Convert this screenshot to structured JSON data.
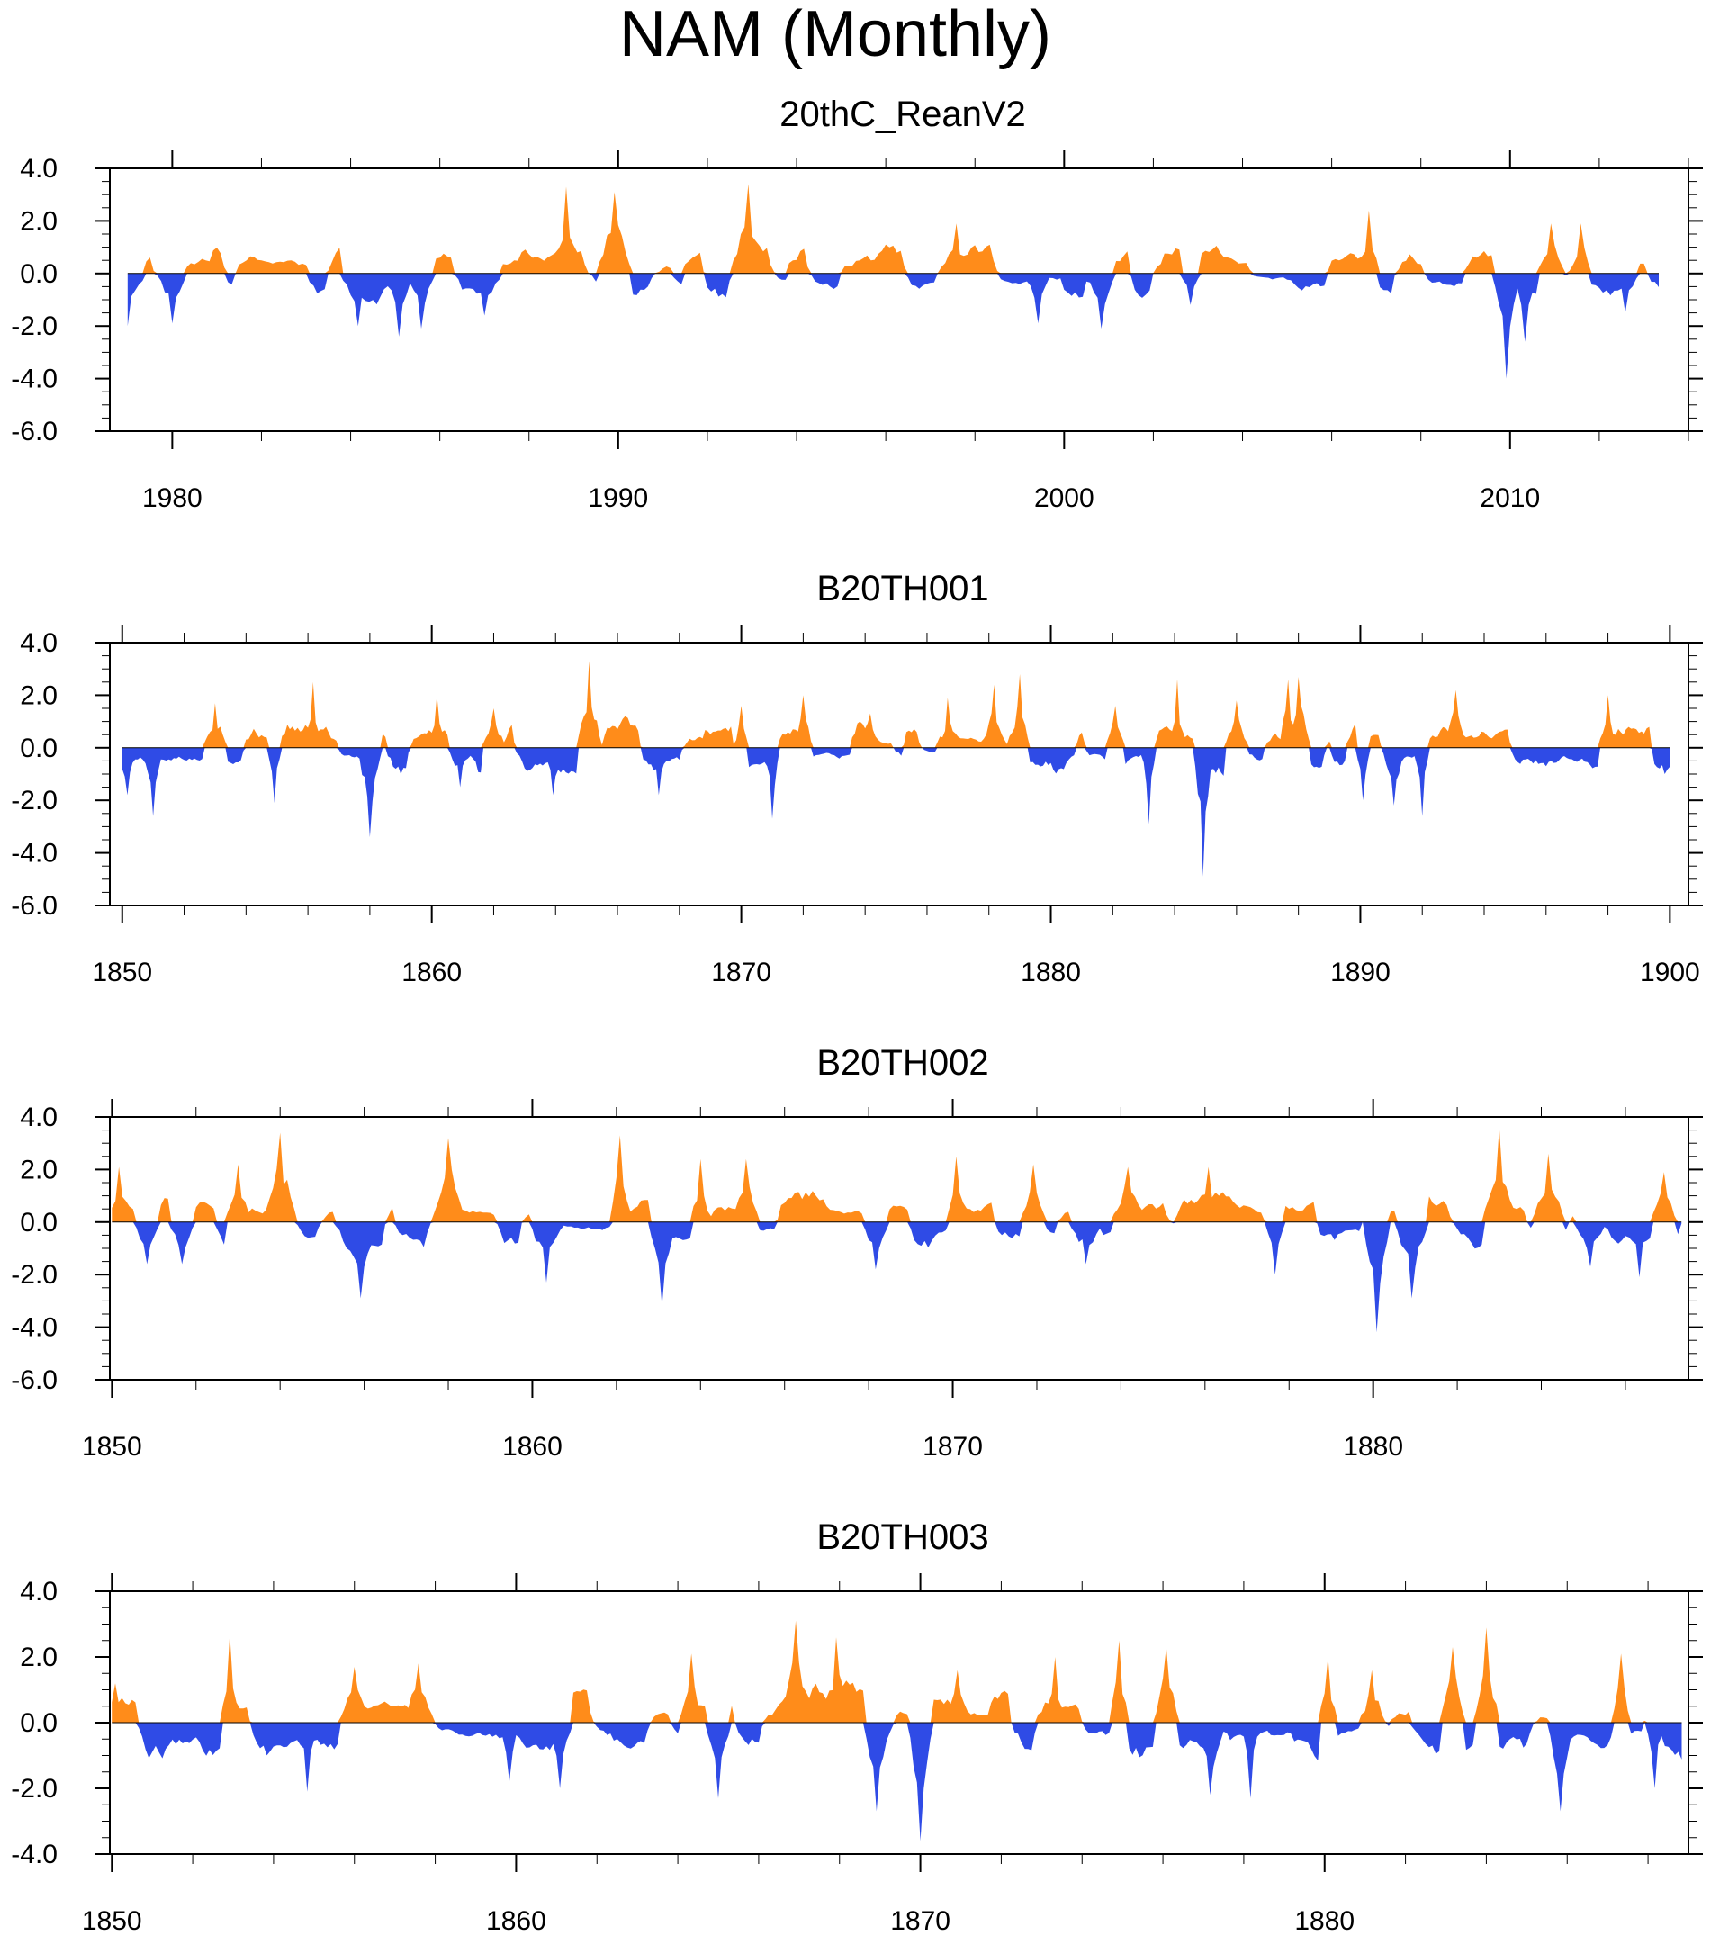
{
  "figure_title": "NAM (Monthly)",
  "colors": {
    "positive": "#ff8c1a",
    "negative": "#2f4be6",
    "axis": "#000000"
  },
  "chart_data": [
    {
      "type": "area",
      "title": "20thC_ReanV2",
      "xlim": [
        1978.6,
        2014.0
      ],
      "ylim": [
        -6.0,
        4.0
      ],
      "x_ticks": [
        1980,
        1990,
        2000,
        2010
      ],
      "y_ticks": [
        4.0,
        2.0,
        0.0,
        -2.0,
        -4.0,
        -6.0
      ],
      "x_start": 1979.0,
      "x_end": 2013.3,
      "peaks": [
        [
          1979.0,
          -2.0
        ],
        [
          1979.9,
          1.3
        ],
        [
          1980.0,
          -1.9
        ],
        [
          1984.2,
          -2.0
        ],
        [
          1985.1,
          -2.4
        ],
        [
          1985.6,
          -2.1
        ],
        [
          1987.0,
          -1.6
        ],
        [
          1988.8,
          3.3
        ],
        [
          1989.9,
          3.1
        ],
        [
          1992.9,
          3.4
        ],
        [
          1997.6,
          1.9
        ],
        [
          1999.4,
          -1.9
        ],
        [
          2000.8,
          -2.1
        ],
        [
          2002.8,
          -1.2
        ],
        [
          2006.8,
          2.4
        ],
        [
          2009.9,
          -4.0
        ],
        [
          2010.3,
          -2.6
        ],
        [
          2010.9,
          1.9
        ],
        [
          2011.6,
          1.9
        ],
        [
          2012.6,
          -1.5
        ]
      ]
    },
    {
      "type": "area",
      "title": "B20TH001",
      "xlim": [
        1849.6,
        1900.6
      ],
      "ylim": [
        -6.0,
        4.0
      ],
      "x_ticks": [
        1850,
        1860,
        1870,
        1880,
        1890,
        1900
      ],
      "y_ticks": [
        4.0,
        2.0,
        0.0,
        -2.0,
        -4.0,
        -6.0
      ],
      "x_start": 1850.0,
      "x_end": 1900.0,
      "peaks": [
        [
          1850.2,
          -1.8
        ],
        [
          1851.0,
          -2.6
        ],
        [
          1853.0,
          1.7
        ],
        [
          1854.9,
          -2.1
        ],
        [
          1856.2,
          2.5
        ],
        [
          1858.0,
          -3.4
        ],
        [
          1860.2,
          2.0
        ],
        [
          1860.9,
          -1.5
        ],
        [
          1862.0,
          1.5
        ],
        [
          1863.9,
          -1.8
        ],
        [
          1865.1,
          3.3
        ],
        [
          1867.3,
          -1.8
        ],
        [
          1870.0,
          1.6
        ],
        [
          1871.0,
          -2.7
        ],
        [
          1872.0,
          2.0
        ],
        [
          1874.2,
          1.3
        ],
        [
          1876.7,
          1.9
        ],
        [
          1878.2,
          2.4
        ],
        [
          1879.0,
          2.8
        ],
        [
          1882.1,
          1.6
        ],
        [
          1883.2,
          -2.9
        ],
        [
          1884.1,
          2.6
        ],
        [
          1884.9,
          -4.9
        ],
        [
          1886.0,
          1.8
        ],
        [
          1887.7,
          2.6
        ],
        [
          1888.0,
          2.7
        ],
        [
          1889.9,
          1.8
        ],
        [
          1890.1,
          -2.0
        ],
        [
          1891.1,
          -2.2
        ],
        [
          1892.0,
          -2.6
        ],
        [
          1893.1,
          2.2
        ],
        [
          1898.0,
          2.0
        ],
        [
          1899.8,
          -1.0
        ]
      ]
    },
    {
      "type": "area",
      "title": "B20TH002",
      "xlim": [
        1849.95,
        1887.5
      ],
      "ylim": [
        -6.0,
        4.0
      ],
      "x_ticks": [
        1850,
        1860,
        1870,
        1880
      ],
      "y_ticks": [
        4.0,
        2.0,
        0.0,
        -2.0,
        -4.0,
        -6.0
      ],
      "x_start": 1850.0,
      "x_end": 1887.3,
      "peaks": [
        [
          1850.2,
          2.1
        ],
        [
          1850.8,
          -1.6
        ],
        [
          1851.7,
          -1.6
        ],
        [
          1853.0,
          2.2
        ],
        [
          1854.0,
          3.4
        ],
        [
          1855.9,
          -2.9
        ],
        [
          1858.0,
          3.2
        ],
        [
          1860.3,
          -2.3
        ],
        [
          1862.1,
          3.3
        ],
        [
          1863.1,
          -3.2
        ],
        [
          1864.0,
          2.4
        ],
        [
          1865.1,
          2.4
        ],
        [
          1868.2,
          -1.8
        ],
        [
          1870.1,
          2.5
        ],
        [
          1871.9,
          2.2
        ],
        [
          1873.2,
          -1.6
        ],
        [
          1874.2,
          2.1
        ],
        [
          1876.1,
          2.1
        ],
        [
          1877.7,
          -2.0
        ],
        [
          1880.1,
          -4.2
        ],
        [
          1880.9,
          -2.9
        ],
        [
          1883.0,
          3.6
        ],
        [
          1884.2,
          2.6
        ],
        [
          1885.2,
          -1.7
        ],
        [
          1886.3,
          -2.1
        ],
        [
          1886.9,
          1.9
        ]
      ]
    },
    {
      "type": "area",
      "title": "B20TH003",
      "xlim": [
        1849.95,
        1889.0
      ],
      "ylim": [
        -4.0,
        4.0
      ],
      "x_ticks": [
        1850,
        1860,
        1870,
        1880
      ],
      "y_ticks": [
        4.0,
        2.0,
        0.0,
        -2.0,
        -4.0
      ],
      "x_start": 1850.0,
      "x_end": 1888.8,
      "peaks": [
        [
          1850.1,
          1.2
        ],
        [
          1852.9,
          2.7
        ],
        [
          1854.8,
          -2.1
        ],
        [
          1856.0,
          1.7
        ],
        [
          1857.6,
          1.8
        ],
        [
          1859.8,
          -1.8
        ],
        [
          1861.1,
          -2.0
        ],
        [
          1864.3,
          2.1
        ],
        [
          1865.0,
          -2.3
        ],
        [
          1866.9,
          3.1
        ],
        [
          1867.9,
          2.6
        ],
        [
          1868.9,
          -2.7
        ],
        [
          1870.0,
          -3.6
        ],
        [
          1870.9,
          1.6
        ],
        [
          1873.3,
          2.0
        ],
        [
          1874.9,
          2.5
        ],
        [
          1876.1,
          2.3
        ],
        [
          1877.2,
          -2.2
        ],
        [
          1878.2,
          -2.3
        ],
        [
          1880.1,
          2.0
        ],
        [
          1881.2,
          1.6
        ],
        [
          1883.2,
          2.3
        ],
        [
          1884.0,
          2.9
        ],
        [
          1885.8,
          -2.7
        ],
        [
          1887.3,
          2.1
        ],
        [
          1888.2,
          -2.0
        ]
      ]
    }
  ]
}
